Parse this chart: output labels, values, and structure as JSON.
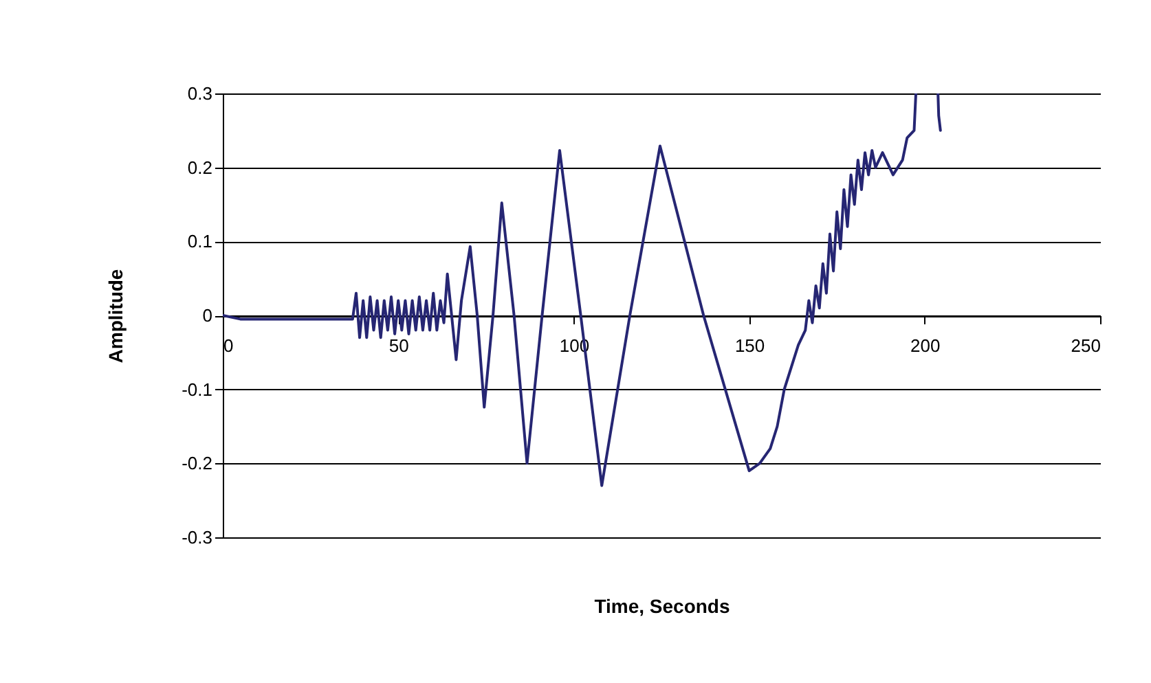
{
  "chart_data": {
    "type": "line",
    "xlabel": "Time, Seconds",
    "ylabel": "Amplitude",
    "xlim": [
      0,
      250
    ],
    "ylim": [
      -0.3,
      0.3
    ],
    "xticks": [
      0,
      50,
      100,
      150,
      200,
      250
    ],
    "yticks": [
      -0.3,
      -0.2,
      -0.1,
      0,
      0.1,
      0.2,
      0.3
    ],
    "grid": "y",
    "line_style": "solid",
    "x": [
      0,
      5,
      10,
      20,
      30,
      37,
      38,
      39,
      40,
      41,
      42,
      43,
      44,
      45,
      46,
      47,
      48,
      49,
      50,
      51,
      52,
      53,
      54,
      55,
      56,
      57,
      58,
      59,
      60,
      61,
      62,
      63,
      64,
      65,
      66.5,
      68,
      70.5,
      72.5,
      74.5,
      77,
      79.5,
      83,
      86.7,
      91,
      96,
      102,
      108,
      116,
      124.6,
      137,
      150,
      153,
      156,
      158,
      160,
      162,
      164,
      166,
      167,
      168,
      169,
      170,
      171,
      172,
      173,
      174,
      175,
      176,
      177,
      178,
      179,
      180,
      181,
      182,
      183,
      184,
      185,
      186,
      188,
      191,
      193.7,
      195,
      197,
      197.5,
      198,
      203.8,
      204,
      204.5
    ],
    "series": [
      {
        "color": "#262673",
        "values": [
          0,
          -0.005,
          -0.005,
          -0.005,
          -0.005,
          -0.005,
          0.03,
          -0.03,
          0.02,
          -0.03,
          0.025,
          -0.02,
          0.02,
          -0.03,
          0.02,
          -0.02,
          0.025,
          -0.025,
          0.02,
          -0.02,
          0.02,
          -0.025,
          0.02,
          -0.02,
          0.025,
          -0.02,
          0.02,
          -0.02,
          0.03,
          -0.02,
          0.02,
          -0.01,
          0.056,
          0.01,
          -0.06,
          0.02,
          0.093,
          0,
          -0.124,
          0,
          0.152,
          0,
          -0.2,
          0,
          0.223,
          0,
          -0.23,
          0,
          0.229,
          0,
          -0.21,
          -0.2,
          -0.18,
          -0.15,
          -0.1,
          -0.07,
          -0.04,
          -0.02,
          0.02,
          -0.01,
          0.04,
          0.01,
          0.07,
          0.03,
          0.11,
          0.06,
          0.14,
          0.09,
          0.17,
          0.12,
          0.19,
          0.15,
          0.21,
          0.17,
          0.22,
          0.19,
          0.223,
          0.2,
          0.22,
          0.19,
          0.21,
          0.24,
          0.25,
          0.3,
          null,
          0.3,
          0.27,
          0.25
        ]
      }
    ]
  }
}
